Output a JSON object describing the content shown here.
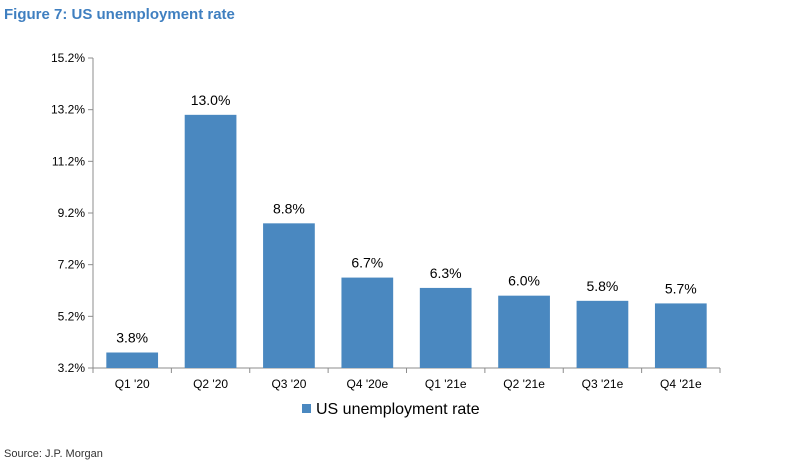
{
  "figure": {
    "title": "Figure 7: US unemployment rate",
    "source": "Source: J.P. Morgan"
  },
  "colors": {
    "title": "#3f7fc0",
    "bar": "#4a88c0",
    "axis": "#8c8c8c"
  },
  "chart_data": {
    "type": "bar",
    "categories": [
      "Q1 '20",
      "Q2 '20",
      "Q3 '20",
      "Q4 '20e",
      "Q1 '21e",
      "Q2 '21e",
      "Q3 '21e",
      "Q4 '21e"
    ],
    "series": [
      {
        "name": "US unemployment rate",
        "values": [
          3.8,
          13.0,
          8.8,
          6.7,
          6.3,
          6.0,
          5.8,
          5.7
        ],
        "labels": [
          "3.8%",
          "13.0%",
          "8.8%",
          "6.7%",
          "6.3%",
          "6.0%",
          "5.8%",
          "5.7%"
        ]
      }
    ],
    "yticks": [
      3.2,
      5.2,
      7.2,
      9.2,
      11.2,
      13.2,
      15.2
    ],
    "ytick_labels": [
      "3.2%",
      "5.2%",
      "7.2%",
      "9.2%",
      "11.2%",
      "13.2%",
      "15.2%"
    ],
    "ylim": [
      3.2,
      15.2
    ],
    "grid": false,
    "legend_position": "bottom-center",
    "title": "",
    "xlabel": "",
    "ylabel": ""
  }
}
